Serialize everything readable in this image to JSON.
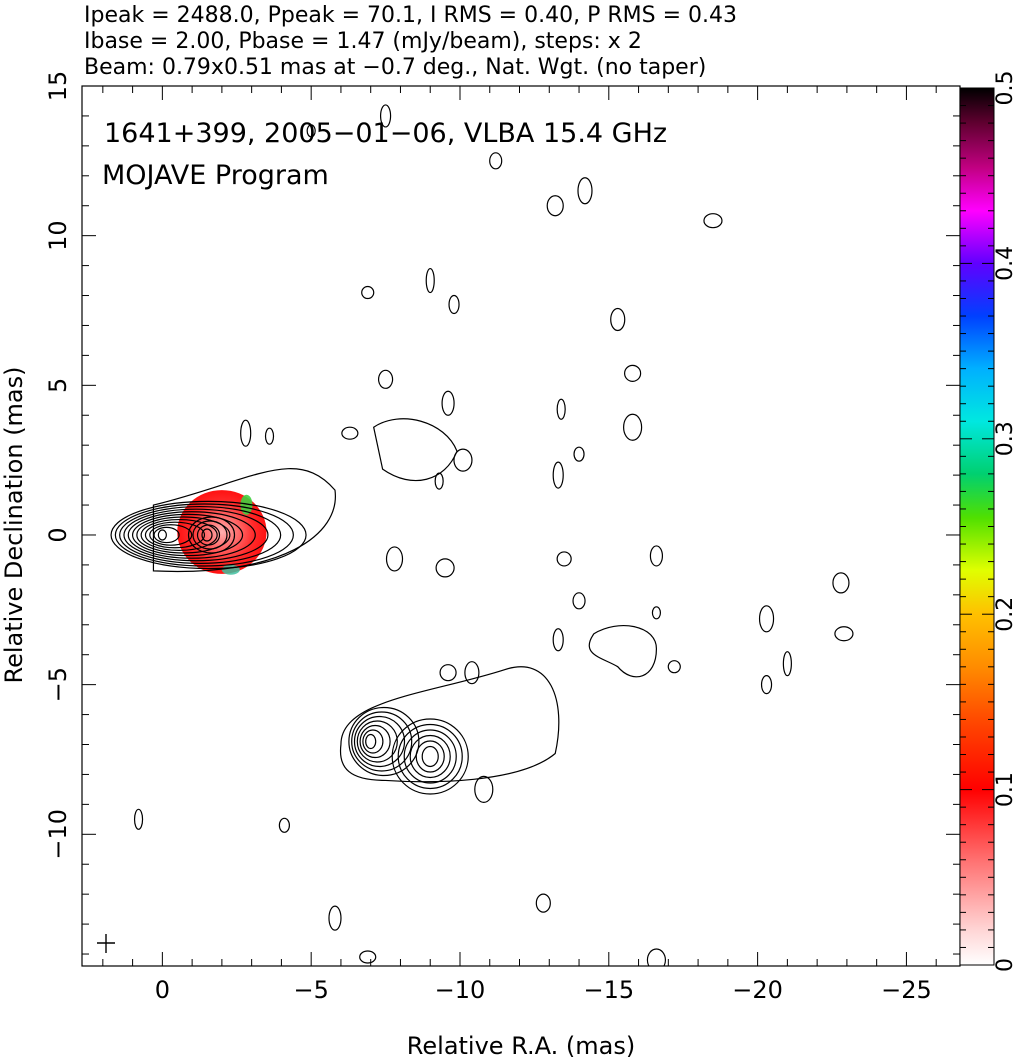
{
  "header": {
    "line1": "Ipeak = 2488.0, Ppeak = 70.1, I RMS = 0.40, P RMS = 0.43",
    "line2": "Ibase = 2.00, Pbase = 1.47 (mJy/beam), steps: x 2",
    "line3": "Beam: 0.79x0.51 mas at −0.7 deg., Nat. Wgt. (no taper)"
  },
  "annotation": {
    "source_line": "1641+399, 2005−01−06, VLBA 15.4 GHz",
    "program_line": "MOJAVE Program"
  },
  "chart_data": {
    "type": "heatmap",
    "title": "",
    "xlabel": "Relative R.A. (mas)",
    "ylabel": "Relative Declination (mas)",
    "xlim": [
      2.7,
      -26.8
    ],
    "ylim": [
      -14.4,
      15
    ],
    "x_ticks": [
      0,
      -5,
      -10,
      -15,
      -20,
      -25
    ],
    "x_tick_labels": [
      "0",
      "−5",
      "−10",
      "−15",
      "−20",
      "−25"
    ],
    "y_ticks": [
      15,
      10,
      5,
      0,
      -5,
      -10
    ],
    "y_tick_labels": [
      "15",
      "10",
      "5",
      "0",
      "−5",
      "−10"
    ],
    "colorbar": {
      "range": [
        0,
        0.5
      ],
      "ticks": [
        0,
        0.1,
        0.2,
        0.3,
        0.4,
        0.5
      ],
      "tick_labels": [
        "0",
        "0.1",
        "0.2",
        "0.3",
        "0.4",
        "0.5"
      ]
    },
    "core": {
      "x": 0,
      "y": 0,
      "levels": 12
    },
    "secondary_component": {
      "x": -7.0,
      "y": -6.9,
      "levels": 7
    },
    "polarization_region": {
      "x_range": [
        -0.5,
        -3.5
      ],
      "y_range": [
        -1.3,
        1.5
      ],
      "typical_value": 0.08
    },
    "noise_contours": [
      {
        "x": -5.0,
        "y": 13.5
      },
      {
        "x": -7.5,
        "y": 14.0
      },
      {
        "x": -11.2,
        "y": 12.5
      },
      {
        "x": -14.2,
        "y": 11.5
      },
      {
        "x": -13.2,
        "y": 11.0
      },
      {
        "x": -18.5,
        "y": 10.5
      },
      {
        "x": -9.0,
        "y": 8.5
      },
      {
        "x": -9.8,
        "y": 7.7
      },
      {
        "x": -6.9,
        "y": 8.1
      },
      {
        "x": -15.3,
        "y": 7.2
      },
      {
        "x": -15.8,
        "y": 5.4
      },
      {
        "x": -15.8,
        "y": 3.6
      },
      {
        "x": -13.4,
        "y": 4.2
      },
      {
        "x": -14.0,
        "y": 2.7
      },
      {
        "x": -9.6,
        "y": 4.4
      },
      {
        "x": -7.5,
        "y": 5.2
      },
      {
        "x": -6.3,
        "y": 3.4
      },
      {
        "x": -10.1,
        "y": 2.5
      },
      {
        "x": -9.3,
        "y": 1.8
      },
      {
        "x": -13.3,
        "y": 2.0
      },
      {
        "x": -16.6,
        "y": -0.7
      },
      {
        "x": -13.5,
        "y": -0.8
      },
      {
        "x": -7.8,
        "y": -0.8
      },
      {
        "x": -9.5,
        "y": -1.1
      },
      {
        "x": -16.6,
        "y": -2.6
      },
      {
        "x": -13.3,
        "y": -3.5
      },
      {
        "x": -14.0,
        "y": -2.2
      },
      {
        "x": -20.3,
        "y": -2.8
      },
      {
        "x": -22.8,
        "y": -1.6
      },
      {
        "x": -22.9,
        "y": -3.3
      },
      {
        "x": -21.0,
        "y": -4.3
      },
      {
        "x": -20.3,
        "y": -5.0
      },
      {
        "x": -17.2,
        "y": -4.4
      },
      {
        "x": -10.4,
        "y": -4.6
      },
      {
        "x": -9.6,
        "y": -4.6
      },
      {
        "x": -10.8,
        "y": -8.5
      },
      {
        "x": 0.8,
        "y": -9.5
      },
      {
        "x": -4.1,
        "y": -9.7
      },
      {
        "x": -5.8,
        "y": -12.8
      },
      {
        "x": -12.8,
        "y": -12.3
      },
      {
        "x": -6.9,
        "y": -14.1
      },
      {
        "x": -16.6,
        "y": -14.2
      },
      {
        "x": -3.6,
        "y": 3.3
      },
      {
        "x": -2.8,
        "y": 3.4
      }
    ]
  }
}
